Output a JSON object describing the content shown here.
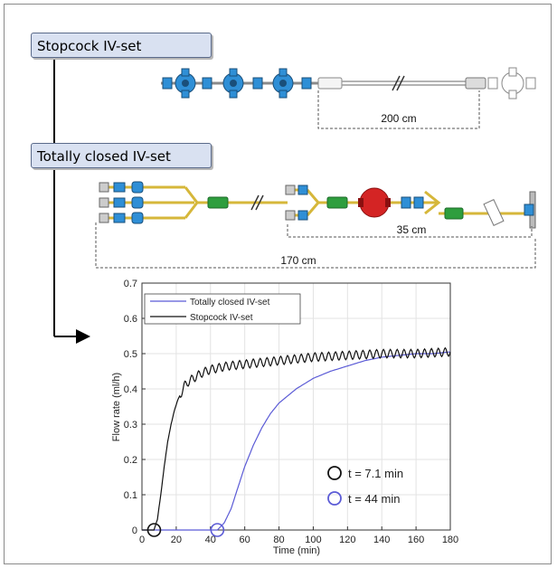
{
  "labels": {
    "stopcock": "Stopcock IV-set",
    "totally_closed": "Totally closed IV-set"
  },
  "dimensions": {
    "stopcock_line": "200 cm",
    "closed_short": "35 cm",
    "closed_long": "170 cm"
  },
  "colors": {
    "stopcock_blue": "#2f8fd6",
    "tube_yellow": "#d6b73a",
    "connector_green": "#2e9e3e",
    "pump_red": "#d42424",
    "closed_series": "#5b5bd6",
    "stopcock_series": "#111111"
  },
  "chart_data": {
    "type": "line",
    "xlabel": "Time (min)",
    "ylabel": "Flow rate (ml/h)",
    "xlim": [
      0,
      180
    ],
    "ylim": [
      0,
      0.7
    ],
    "xticks": [
      0,
      20,
      40,
      60,
      80,
      100,
      120,
      140,
      160,
      180
    ],
    "yticks": [
      0,
      0.1,
      0.2,
      0.3,
      0.4,
      0.5,
      0.6,
      0.7
    ],
    "grid": true,
    "legend_position": "top-left",
    "series": [
      {
        "name": "Totally closed IV-set",
        "color": "#5b5bd6",
        "x": [
          0,
          40,
          44,
          48,
          52,
          56,
          60,
          65,
          70,
          75,
          80,
          90,
          100,
          110,
          120,
          130,
          140,
          150,
          160,
          170,
          180
        ],
        "y": [
          0,
          0,
          0.0,
          0.02,
          0.06,
          0.12,
          0.18,
          0.24,
          0.29,
          0.33,
          0.36,
          0.4,
          0.43,
          0.45,
          0.465,
          0.48,
          0.49,
          0.495,
          0.5,
          0.5,
          0.505
        ]
      },
      {
        "name": "Stopcock IV-set",
        "color": "#111111",
        "x": [
          0,
          7,
          9,
          11,
          13,
          15,
          17,
          19,
          21,
          23,
          25,
          27,
          30,
          35,
          40,
          50,
          60,
          80,
          100,
          120,
          140,
          160,
          180
        ],
        "y": [
          0,
          0,
          0.03,
          0.1,
          0.18,
          0.25,
          0.3,
          0.34,
          0.37,
          0.39,
          0.41,
          0.42,
          0.43,
          0.445,
          0.455,
          0.465,
          0.47,
          0.48,
          0.49,
          0.495,
          0.5,
          0.5,
          0.505
        ],
        "oscillation_amplitude": 0.012,
        "oscillation_period_min": 4
      }
    ],
    "annotations": [
      {
        "label": "t = 7.1 min",
        "x": 7.1,
        "y": 0,
        "color": "#111111"
      },
      {
        "label": "t = 44 min",
        "x": 44,
        "y": 0,
        "color": "#5b5bd6"
      }
    ]
  }
}
